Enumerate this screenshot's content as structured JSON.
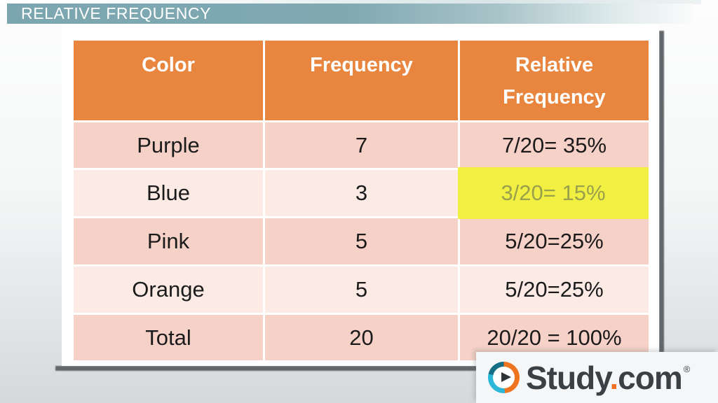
{
  "title_bar": {
    "title": "RELATIVE FREQUENCY"
  },
  "table": {
    "columns": [
      "Color",
      "Frequency",
      "Relative Frequency"
    ],
    "rows": [
      [
        "Purple",
        "7",
        "7/20= 35%"
      ],
      [
        "Blue",
        "3",
        "3/20= 15%"
      ],
      [
        "Pink",
        "5",
        "5/20=25%"
      ],
      [
        "Orange",
        "5",
        "5/20=25%"
      ],
      [
        "Total",
        "20",
        "20/20 = 100%"
      ]
    ]
  },
  "highlight": {
    "row": "Blue",
    "column": "Relative Frequency",
    "value": "3/20= 15%"
  },
  "logo": {
    "study": "Study",
    "dot": ".",
    "com": "com",
    "registered": "®"
  },
  "colors": {
    "title_bar_teal": "#7ba6b0",
    "table_header_orange": "#e8863f",
    "row_pink_dark": "#f6d1c7",
    "row_pink_light": "#fceae4",
    "highlight_yellow": "#f1f042",
    "highlight_text_olive": "#9aa04b",
    "shadow_gray": "#63676a",
    "logo_orange": "#f2711f",
    "logo_teal": "#2cb7d9",
    "logo_dark_teal": "#156e84",
    "logo_text_gray": "#3b4045"
  },
  "chart_data": {
    "type": "table",
    "title": "RELATIVE FREQUENCY",
    "columns": [
      "Color",
      "Frequency",
      "Relative Frequency"
    ],
    "rows": [
      {
        "color": "Purple",
        "frequency": 7,
        "relative_frequency": "7/20= 35%",
        "relative_frequency_pct": 35
      },
      {
        "color": "Blue",
        "frequency": 3,
        "relative_frequency": "3/20= 15%",
        "relative_frequency_pct": 15
      },
      {
        "color": "Pink",
        "frequency": 5,
        "relative_frequency": "5/20=25%",
        "relative_frequency_pct": 25
      },
      {
        "color": "Orange",
        "frequency": 5,
        "relative_frequency": "5/20=25%",
        "relative_frequency_pct": 25
      },
      {
        "color": "Total",
        "frequency": 20,
        "relative_frequency": "20/20 = 100%",
        "relative_frequency_pct": 100
      }
    ],
    "highlighted_cell": {
      "row": "Blue",
      "column": "Relative Frequency"
    }
  }
}
